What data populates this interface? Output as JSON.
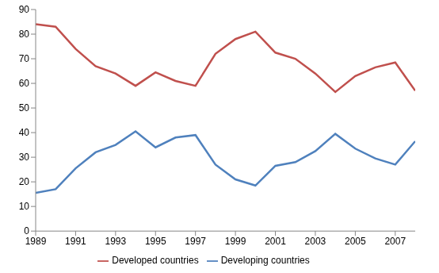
{
  "chart_data": {
    "type": "line",
    "x": [
      1989,
      1990,
      1991,
      1992,
      1993,
      1994,
      1995,
      1996,
      1997,
      1998,
      1999,
      2000,
      2001,
      2002,
      2003,
      2004,
      2005,
      2006,
      2007,
      2008
    ],
    "series": [
      {
        "name": "Developed countries",
        "color": "#c0504d",
        "values": [
          84,
          83,
          74,
          67,
          64,
          59,
          64.5,
          61,
          59,
          72,
          78,
          81,
          72.5,
          70,
          64,
          56.5,
          63,
          66.5,
          68.5,
          57
        ]
      },
      {
        "name": "Developing countries",
        "color": "#4f81bd",
        "values": [
          15.5,
          17,
          25.5,
          32,
          35,
          40.5,
          34,
          38,
          39,
          27,
          21,
          18.5,
          26.5,
          28,
          32.5,
          39.5,
          33.5,
          29.5,
          27,
          36.5
        ]
      }
    ],
    "xlim": [
      1989,
      2008
    ],
    "xticks": [
      1989,
      1991,
      1993,
      1995,
      1997,
      1999,
      2001,
      2003,
      2005,
      2007
    ],
    "ylim": [
      0,
      90
    ],
    "yticks": [
      0,
      10,
      20,
      30,
      40,
      50,
      60,
      70,
      80,
      90
    ],
    "grid": false,
    "legend": "bottom",
    "marker": "none",
    "line_style": "solid"
  }
}
